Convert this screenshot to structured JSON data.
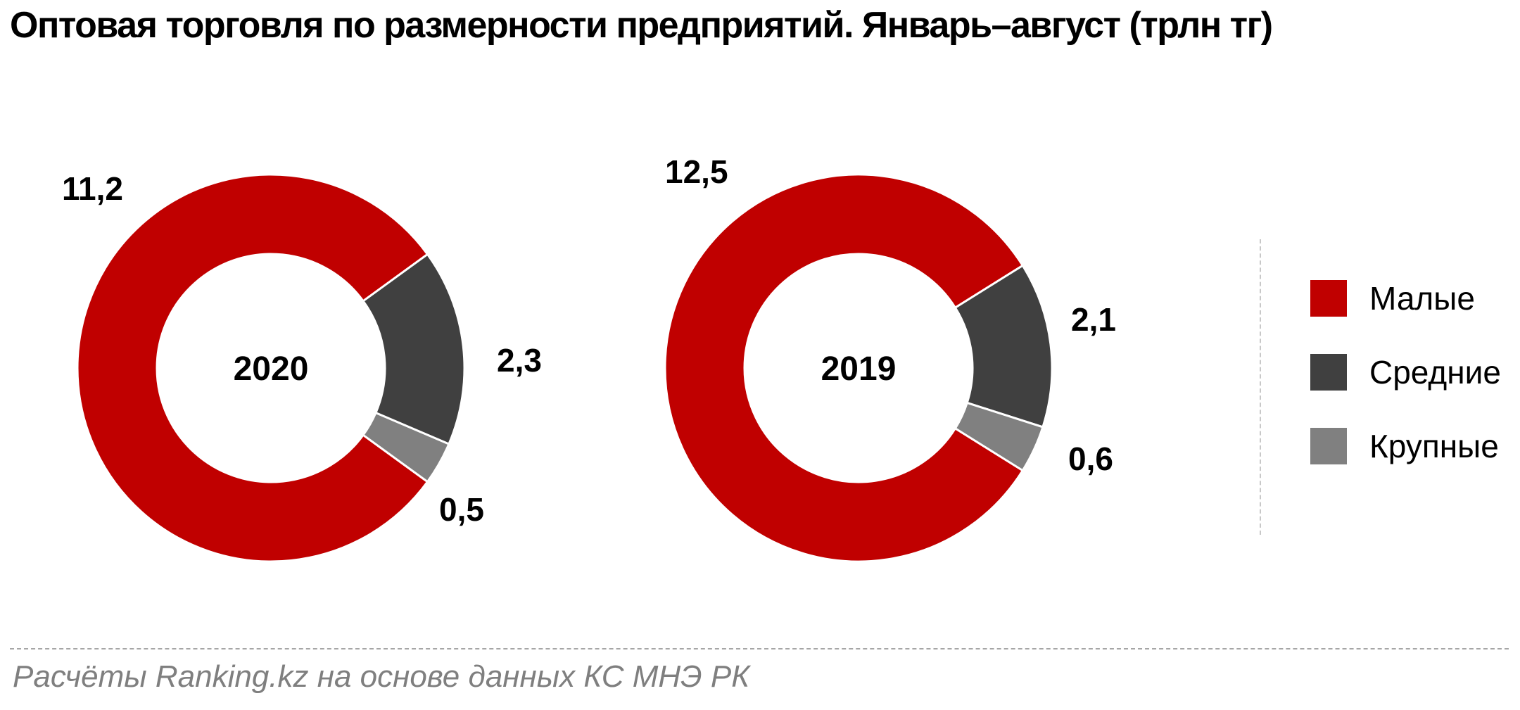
{
  "title": "Оптовая торговля по размерности предприятий. Январь–август (трлн тг)",
  "source": "Расчёты Ranking.kz на основе данных  КС МНЭ РК",
  "colors": {
    "small": "#C00000",
    "medium": "#404040",
    "large": "#808080"
  },
  "legend": [
    {
      "label": "Малые",
      "color": "#C00000"
    },
    {
      "label": "Средние",
      "color": "#404040"
    },
    {
      "label": "Крупные",
      "color": "#808080"
    }
  ],
  "chart_data": [
    {
      "type": "pie",
      "variant": "donut",
      "center_label": "2020",
      "categories": [
        "Малые",
        "Средние",
        "Крупные"
      ],
      "values": [
        11.2,
        2.3,
        0.5
      ],
      "data_labels": [
        "11,2",
        "2,3",
        "0,5"
      ]
    },
    {
      "type": "pie",
      "variant": "donut",
      "center_label": "2019",
      "categories": [
        "Малые",
        "Средние",
        "Крупные"
      ],
      "values": [
        12.5,
        2.1,
        0.6
      ],
      "data_labels": [
        "12,5",
        "2,1",
        "0,6"
      ]
    }
  ]
}
